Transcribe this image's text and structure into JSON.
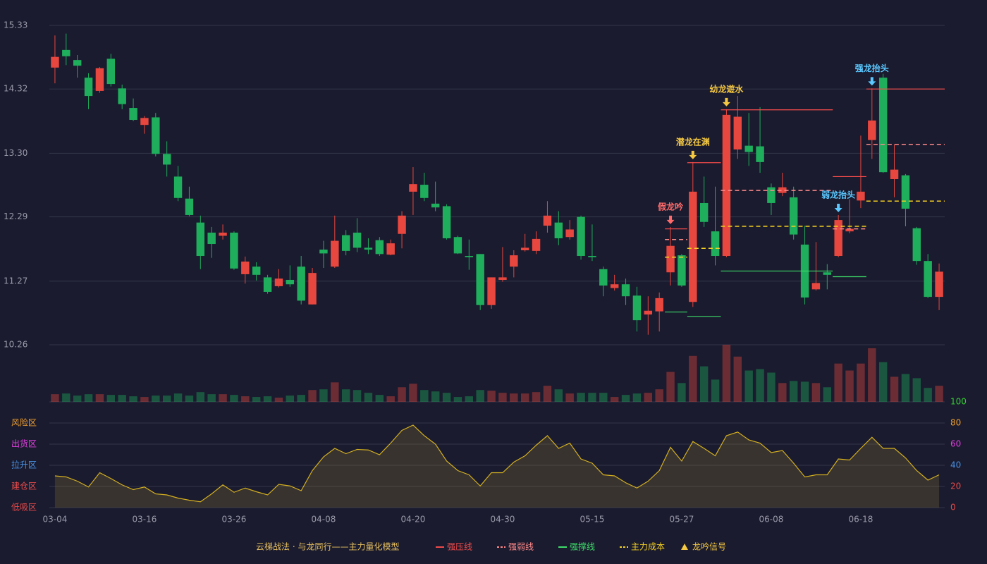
{
  "chart_data": {
    "type": "candlestick",
    "title": "云梯战法 · 与龙同行——主力量化模型",
    "categories": [
      "03-04",
      null,
      null,
      null,
      null,
      null,
      null,
      null,
      "03-16",
      null,
      null,
      null,
      null,
      null,
      null,
      null,
      "03-26",
      null,
      null,
      null,
      null,
      null,
      null,
      null,
      "04-08",
      null,
      null,
      null,
      null,
      null,
      null,
      null,
      "04-20",
      null,
      null,
      null,
      null,
      null,
      null,
      null,
      "04-30",
      null,
      null,
      null,
      null,
      null,
      null,
      null,
      "05-15",
      null,
      null,
      null,
      null,
      null,
      null,
      null,
      "05-27",
      null,
      null,
      null,
      null,
      null,
      null,
      null,
      "06-08",
      null,
      null,
      null,
      null,
      null,
      null,
      null,
      "06-18",
      null,
      null,
      null,
      null,
      null,
      null,
      null
    ],
    "open": [
      14.66,
      14.94,
      14.78,
      14.5,
      14.29,
      14.8,
      14.33,
      14.02,
      13.75,
      13.87,
      13.29,
      12.93,
      12.58,
      12.2,
      12.04,
      11.99,
      12.04,
      11.38,
      11.5,
      11.33,
      11.19,
      11.29,
      11.5,
      10.9,
      11.77,
      11.5,
      12.0,
      12.04,
      11.8,
      11.92,
      11.69,
      12.02,
      12.69,
      12.8,
      12.5,
      12.46,
      11.97,
      11.67,
      11.7,
      10.89,
      11.29,
      11.5,
      11.76,
      11.75,
      12.15,
      12.2,
      11.97,
      12.29,
      11.67,
      11.46,
      11.16,
      11.22,
      11.04,
      10.74,
      10.79,
      11.41,
      11.68,
      10.94,
      12.51,
      12.06,
      11.67,
      13.36,
      13.42,
      13.41,
      12.76,
      12.67,
      12.6,
      11.85,
      11.14,
      11.41,
      11.67,
      12.06,
      12.55,
      13.51,
      14.5,
      12.89,
      12.95,
      12.11,
      11.59,
      11.02
    ],
    "high": [
      15.17,
      15.2,
      14.86,
      14.57,
      14.67,
      14.88,
      14.39,
      14.17,
      13.89,
      13.94,
      13.49,
      13.1,
      12.77,
      12.31,
      12.13,
      12.17,
      12.06,
      11.66,
      11.57,
      11.37,
      11.46,
      11.52,
      11.67,
      11.48,
      11.91,
      12.31,
      12.08,
      12.27,
      11.95,
      11.97,
      11.93,
      12.38,
      13.08,
      12.99,
      12.85,
      12.49,
      11.99,
      11.93,
      11.7,
      11.33,
      11.81,
      11.76,
      12.02,
      12.06,
      12.54,
      12.38,
      12.24,
      12.31,
      12.17,
      11.5,
      11.37,
      11.31,
      11.18,
      11.03,
      11.09,
      12.13,
      11.7,
      13.16,
      12.93,
      12.77,
      14.0,
      14.21,
      13.94,
      14.03,
      12.82,
      12.99,
      12.77,
      12.15,
      11.89,
      11.54,
      12.32,
      12.57,
      13.58,
      14.33,
      14.56,
      13.44,
      12.97,
      12.13,
      11.7,
      11.55
    ],
    "low": [
      14.41,
      14.7,
      14.5,
      14.0,
      14.26,
      14.36,
      14.0,
      13.81,
      13.61,
      13.25,
      12.93,
      12.54,
      12.3,
      11.46,
      11.64,
      11.93,
      11.45,
      11.23,
      11.28,
      11.07,
      11.17,
      11.18,
      10.9,
      10.9,
      11.48,
      11.48,
      11.68,
      11.73,
      11.7,
      11.67,
      11.68,
      11.79,
      12.32,
      12.54,
      12.38,
      11.93,
      11.7,
      11.45,
      10.81,
      10.83,
      11.26,
      11.33,
      11.74,
      11.7,
      12.04,
      11.84,
      11.93,
      11.61,
      11.59,
      11.03,
      11.12,
      10.89,
      10.47,
      10.42,
      10.47,
      11.2,
      11.18,
      10.86,
      12.13,
      11.52,
      11.65,
      13.21,
      13.1,
      12.99,
      12.32,
      12.62,
      11.93,
      10.9,
      11.12,
      11.14,
      11.65,
      12.03,
      12.43,
      13.21,
      12.99,
      12.6,
      12.14,
      11.53,
      11.0,
      10.81
    ],
    "close": [
      14.83,
      14.84,
      14.69,
      14.21,
      14.65,
      14.4,
      14.08,
      13.83,
      13.86,
      13.29,
      13.12,
      12.59,
      12.32,
      11.67,
      11.86,
      12.04,
      11.47,
      11.58,
      11.37,
      11.1,
      11.31,
      11.22,
      10.96,
      11.4,
      11.71,
      11.91,
      11.75,
      11.8,
      11.77,
      11.7,
      11.87,
      12.31,
      12.81,
      12.59,
      12.44,
      11.95,
      11.71,
      11.65,
      10.89,
      11.33,
      11.33,
      11.68,
      11.8,
      11.94,
      12.31,
      11.95,
      12.09,
      11.67,
      11.65,
      11.2,
      11.22,
      11.03,
      10.65,
      10.8,
      11.0,
      11.83,
      11.2,
      12.69,
      12.21,
      11.67,
      13.91,
      13.88,
      13.32,
      13.16,
      12.51,
      12.76,
      12.01,
      11.01,
      11.24,
      11.37,
      12.24,
      12.1,
      12.69,
      13.82,
      13.0,
      13.04,
      12.42,
      11.59,
      11.02,
      11.42
    ],
    "up_color": "#e8473f",
    "down_color": "#1fae5c",
    "ylim": [
      10.26,
      15.33
    ],
    "yticks": [
      10.26,
      11.27,
      12.29,
      {
        "value": 13.3,
        "label": "13.30"
      },
      14.32,
      15.33
    ],
    "grid": true,
    "volume": {
      "values": [
        11,
        12,
        9,
        11,
        11,
        10,
        10,
        8,
        7,
        9,
        9,
        12,
        9,
        14,
        11,
        11,
        10,
        8,
        7,
        8,
        6,
        9,
        10,
        17,
        18,
        28,
        18,
        17,
        13,
        10,
        8,
        21,
        26,
        17,
        15,
        13,
        7,
        8,
        17,
        16,
        13,
        12,
        12,
        14,
        23,
        18,
        12,
        13,
        13,
        13,
        7,
        10,
        12,
        13,
        18,
        43,
        27,
        66,
        51,
        32,
        82,
        65,
        45,
        47,
        42,
        27,
        30,
        29,
        27,
        21,
        55,
        45,
        55,
        77,
        57,
        36,
        40,
        34,
        20,
        23
      ]
    },
    "indicator": {
      "values": [
        30,
        29,
        25,
        19.5,
        33,
        27.5,
        21.5,
        17,
        19.5,
        13,
        12,
        9,
        7,
        5.5,
        13,
        21.5,
        14.5,
        18.5,
        15,
        12,
        22,
        20.5,
        16,
        35,
        48,
        56,
        51,
        55,
        54.5,
        50,
        61,
        73,
        78,
        68,
        60,
        44,
        35,
        31,
        20.5,
        33,
        33,
        43,
        49,
        59,
        68,
        56,
        61,
        46,
        42,
        31,
        30,
        23.5,
        18.5,
        25,
        35,
        57,
        44,
        62.5,
        56,
        49,
        68,
        71.5,
        64,
        61,
        52,
        54,
        42,
        29,
        31,
        31,
        46,
        45,
        56,
        66.5,
        56,
        56,
        47,
        35,
        26,
        31
      ],
      "color": "#d4b020",
      "ylim": [
        0,
        100
      ],
      "yticks": [
        0,
        20,
        40,
        60,
        80,
        100
      ],
      "ytick_colors": [
        "#e84a4a",
        "#e84a4a",
        "#4a90e2",
        "#e040e0",
        "#f0a030",
        "#33cc33"
      ],
      "zones": [
        {
          "value": 0,
          "label": "低吸区",
          "color": "#e84a4a"
        },
        {
          "value": 20,
          "label": "建仓区",
          "color": "#e84a4a"
        },
        {
          "value": 40,
          "label": "拉升区",
          "color": "#4a90e2"
        },
        {
          "value": 60,
          "label": "出货区",
          "color": "#e040e0"
        },
        {
          "value": 80,
          "label": "风险区",
          "color": "#f0a030"
        }
      ]
    },
    "levels": [
      {
        "name": "强压线",
        "color": "#f04b4b",
        "dash": false,
        "segments": [
          {
            "from": 55,
            "to": 56,
            "value": 12.1
          },
          {
            "from": 57,
            "to": 59,
            "value": 13.15
          },
          {
            "from": 60,
            "to": 69,
            "value": 13.99
          },
          {
            "from": 70,
            "to": 72,
            "value": 12.93
          },
          {
            "from": 73,
            "to": 79,
            "value": 14.32
          }
        ]
      },
      {
        "name": "强弱线",
        "color": "#ff8a8a",
        "dash": true,
        "segments": [
          {
            "from": 55,
            "to": 56,
            "value": 11.93
          },
          {
            "from": 60,
            "to": 69,
            "value": 12.71
          },
          {
            "from": 70,
            "to": 72,
            "value": 12.1
          },
          {
            "from": 73,
            "to": 79,
            "value": 13.44
          }
        ]
      },
      {
        "name": "强撑线",
        "color": "#3ddc6a",
        "dash": false,
        "segments": [
          {
            "from": 55,
            "to": 56,
            "value": 10.78
          },
          {
            "from": 57,
            "to": 59,
            "value": 10.71
          },
          {
            "from": 60,
            "to": 69,
            "value": 11.43
          },
          {
            "from": 70,
            "to": 72,
            "value": 11.34
          }
        ]
      },
      {
        "name": "主力成本",
        "color": "#f5d020",
        "dash": true,
        "segments": [
          {
            "from": 55,
            "to": 56,
            "value": 11.65
          },
          {
            "from": 57,
            "to": 59,
            "value": 11.79
          },
          {
            "from": 60,
            "to": 72,
            "value": 12.14
          },
          {
            "from": 73,
            "to": 79,
            "value": 12.54
          }
        ]
      }
    ],
    "signals": {
      "name": "龙吟信号",
      "color": "#f5c842",
      "points": [
        {
          "index": 55,
          "label": "假龙吟",
          "color": "#ff6b6b"
        },
        {
          "index": 57,
          "label": "潜龙在渊",
          "color": "#f5c842"
        },
        {
          "index": 60,
          "label": "幼龙遊水",
          "color": "#f5c842"
        },
        {
          "index": 70,
          "label": "弱龙抬头",
          "color": "#5bc8ff"
        },
        {
          "index": 73,
          "label": "强龙抬头",
          "color": "#5bc8ff"
        }
      ]
    }
  }
}
